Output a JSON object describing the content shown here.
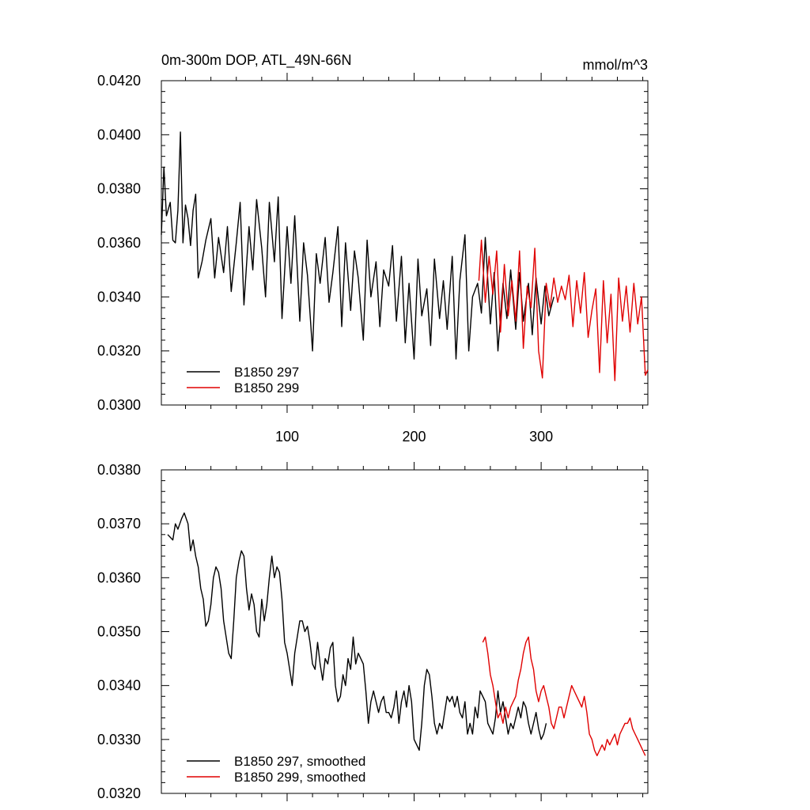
{
  "chart_data": [
    {
      "type": "line",
      "title": "0m-300m DOP, ATL_49N-66N",
      "units": "mmol/m^3",
      "xlim": [
        1,
        384
      ],
      "ylim": [
        0.03,
        0.042
      ],
      "x_ticks": [
        100,
        200,
        300
      ],
      "x_tick_labels": [
        "100",
        "200",
        "300"
      ],
      "y_ticks": [
        0.03,
        0.032,
        0.034,
        0.036,
        0.038,
        0.04,
        0.042
      ],
      "y_tick_labels": [
        "0.0300",
        "0.0320",
        "0.0340",
        "0.0360",
        "0.0380",
        "0.0400",
        "0.0420"
      ],
      "legend_position": "bottom-left",
      "series": [
        {
          "name": "B1850 297",
          "color": "#000000",
          "x": [
            1,
            3,
            5,
            8,
            10,
            12,
            14,
            16,
            18,
            20,
            22,
            24,
            26,
            28,
            30,
            33,
            36,
            40,
            43,
            46,
            50,
            53,
            56,
            60,
            63,
            66,
            70,
            73,
            76,
            80,
            83,
            86,
            90,
            93,
            96,
            100,
            103,
            106,
            110,
            113,
            116,
            120,
            123,
            126,
            130,
            133,
            136,
            140,
            143,
            146,
            150,
            153,
            156,
            160,
            163,
            166,
            170,
            173,
            176,
            180,
            183,
            186,
            190,
            193,
            196,
            200,
            203,
            206,
            210,
            213,
            216,
            220,
            223,
            226,
            230,
            233,
            236,
            240,
            243,
            246,
            250,
            253,
            256,
            260,
            263,
            266,
            270,
            273,
            276,
            280,
            283,
            286,
            290,
            293,
            296,
            300,
            303,
            306,
            310
          ],
          "y": [
            0.0363,
            0.0388,
            0.037,
            0.0375,
            0.0361,
            0.036,
            0.0372,
            0.0401,
            0.036,
            0.0374,
            0.0369,
            0.0359,
            0.0372,
            0.0378,
            0.0347,
            0.0353,
            0.0361,
            0.0369,
            0.0347,
            0.0362,
            0.0349,
            0.0366,
            0.0342,
            0.036,
            0.0375,
            0.0337,
            0.0366,
            0.035,
            0.0376,
            0.0358,
            0.034,
            0.0375,
            0.0353,
            0.0377,
            0.0332,
            0.0366,
            0.0345,
            0.037,
            0.0331,
            0.036,
            0.0348,
            0.032,
            0.0356,
            0.0345,
            0.0362,
            0.0338,
            0.0349,
            0.0366,
            0.0329,
            0.036,
            0.0335,
            0.0357,
            0.0347,
            0.0324,
            0.0361,
            0.034,
            0.0353,
            0.0329,
            0.035,
            0.0344,
            0.0359,
            0.0331,
            0.0355,
            0.0323,
            0.0345,
            0.0317,
            0.0354,
            0.0333,
            0.0343,
            0.0322,
            0.0354,
            0.0332,
            0.0346,
            0.0328,
            0.0355,
            0.0317,
            0.0346,
            0.0363,
            0.032,
            0.034,
            0.0345,
            0.0334,
            0.0362,
            0.033,
            0.0349,
            0.032,
            0.0345,
            0.0332,
            0.035,
            0.0328,
            0.0349,
            0.0331,
            0.0345,
            0.0326,
            0.0347,
            0.033,
            0.0344,
            0.0333,
            0.034
          ]
        },
        {
          "name": "B1850 299",
          "color": "#e00000",
          "x": [
            251,
            253,
            256,
            259,
            262,
            265,
            268,
            271,
            274,
            277,
            280,
            283,
            286,
            289,
            292,
            295,
            298,
            301,
            304,
            307,
            310,
            313,
            316,
            319,
            322,
            325,
            328,
            331,
            334,
            337,
            340,
            343,
            346,
            349,
            352,
            355,
            358,
            361,
            364,
            367,
            370,
            373,
            376,
            379,
            382,
            384
          ],
          "y": [
            0.0346,
            0.0361,
            0.0338,
            0.0355,
            0.0341,
            0.0357,
            0.0327,
            0.0352,
            0.0333,
            0.0346,
            0.0331,
            0.0357,
            0.0321,
            0.0344,
            0.0336,
            0.0358,
            0.032,
            0.031,
            0.0345,
            0.0336,
            0.0347,
            0.0338,
            0.0344,
            0.0339,
            0.0348,
            0.0329,
            0.0346,
            0.0334,
            0.0349,
            0.0325,
            0.0335,
            0.0343,
            0.0312,
            0.0346,
            0.0323,
            0.0341,
            0.0309,
            0.0347,
            0.0331,
            0.0344,
            0.0327,
            0.0345,
            0.033,
            0.034,
            0.0311,
            0.0313
          ]
        }
      ]
    },
    {
      "type": "line",
      "title": "",
      "xlim": [
        1,
        384
      ],
      "ylim": [
        0.032,
        0.038
      ],
      "x_ticks": [
        100,
        200,
        300
      ],
      "x_tick_labels": [],
      "y_ticks": [
        0.032,
        0.033,
        0.034,
        0.035,
        0.036,
        0.037,
        0.038
      ],
      "y_tick_labels": [
        "0.0320",
        "0.0330",
        "0.0340",
        "0.0350",
        "0.0360",
        "0.0370",
        "0.0380"
      ],
      "legend_position": "bottom-left",
      "series": [
        {
          "name": "B1850 297, smoothed",
          "color": "#000000",
          "x": [
            6,
            10,
            12,
            14,
            17,
            19,
            22,
            24,
            26,
            28,
            30,
            32,
            34,
            36,
            38,
            40,
            42,
            44,
            46,
            48,
            50,
            52,
            54,
            56,
            58,
            60,
            62,
            64,
            66,
            68,
            70,
            72,
            74,
            76,
            78,
            80,
            82,
            84,
            86,
            88,
            90,
            92,
            94,
            96,
            98,
            100,
            102,
            104,
            106,
            108,
            110,
            112,
            114,
            116,
            118,
            120,
            122,
            124,
            126,
            128,
            130,
            132,
            134,
            136,
            138,
            140,
            142,
            144,
            146,
            148,
            150,
            152,
            154,
            156,
            158,
            160,
            162,
            164,
            166,
            168,
            170,
            172,
            174,
            176,
            178,
            180,
            182,
            184,
            186,
            188,
            190,
            192,
            194,
            196,
            198,
            200,
            202,
            204,
            206,
            208,
            210,
            212,
            214,
            216,
            218,
            220,
            222,
            224,
            226,
            228,
            230,
            232,
            234,
            236,
            238,
            240,
            242,
            244,
            246,
            248,
            250,
            252,
            254,
            256,
            258,
            260,
            262,
            264,
            266,
            268,
            270,
            272,
            274,
            276,
            278,
            280,
            282,
            284,
            286,
            288,
            290,
            292,
            294,
            296,
            298,
            300,
            302,
            304
          ],
          "y": [
            0.0368,
            0.0367,
            0.037,
            0.0369,
            0.0371,
            0.0372,
            0.037,
            0.0365,
            0.0367,
            0.0364,
            0.0362,
            0.0358,
            0.0356,
            0.0351,
            0.0352,
            0.0355,
            0.036,
            0.0362,
            0.0361,
            0.0358,
            0.0352,
            0.0349,
            0.0346,
            0.0345,
            0.0352,
            0.036,
            0.0363,
            0.0365,
            0.0364,
            0.0358,
            0.0354,
            0.0357,
            0.0355,
            0.035,
            0.0349,
            0.0356,
            0.0352,
            0.0355,
            0.036,
            0.0364,
            0.036,
            0.0362,
            0.0361,
            0.0356,
            0.0348,
            0.0346,
            0.0343,
            0.034,
            0.0346,
            0.0349,
            0.0352,
            0.0352,
            0.035,
            0.0351,
            0.0348,
            0.0344,
            0.0343,
            0.0348,
            0.0344,
            0.0341,
            0.0345,
            0.0344,
            0.0347,
            0.0348,
            0.034,
            0.0337,
            0.0338,
            0.0342,
            0.034,
            0.0345,
            0.0343,
            0.0349,
            0.0344,
            0.0346,
            0.0345,
            0.0344,
            0.0339,
            0.0333,
            0.0337,
            0.0339,
            0.0337,
            0.0335,
            0.0337,
            0.0338,
            0.0335,
            0.0335,
            0.0334,
            0.0336,
            0.0339,
            0.0333,
            0.0337,
            0.0339,
            0.0336,
            0.034,
            0.0337,
            0.033,
            0.0329,
            0.0328,
            0.0333,
            0.034,
            0.0343,
            0.0342,
            0.0338,
            0.0333,
            0.0331,
            0.0333,
            0.0332,
            0.0335,
            0.0338,
            0.0337,
            0.0338,
            0.0336,
            0.0338,
            0.0335,
            0.0334,
            0.0337,
            0.0331,
            0.0333,
            0.0331,
            0.0336,
            0.0334,
            0.0339,
            0.0338,
            0.0337,
            0.0333,
            0.0332,
            0.0331,
            0.0334,
            0.0339,
            0.0335,
            0.0337,
            0.0334,
            0.0331,
            0.0333,
            0.0332,
            0.0334,
            0.0336,
            0.0334,
            0.0337,
            0.0336,
            0.0333,
            0.0331,
            0.0333,
            0.0335,
            0.0332,
            0.033,
            0.0331,
            0.0333
          ]
        },
        {
          "name": "B1850 299, smoothed",
          "color": "#e00000",
          "x": [
            254,
            256,
            258,
            260,
            262,
            264,
            266,
            268,
            270,
            272,
            274,
            276,
            278,
            280,
            282,
            284,
            286,
            288,
            290,
            292,
            294,
            296,
            298,
            300,
            302,
            304,
            306,
            308,
            310,
            312,
            314,
            316,
            318,
            320,
            322,
            324,
            326,
            328,
            330,
            332,
            334,
            336,
            338,
            340,
            342,
            344,
            346,
            348,
            350,
            352,
            354,
            356,
            358,
            360,
            362,
            364,
            366,
            368,
            370,
            372,
            374,
            376,
            378,
            380,
            382
          ],
          "y": [
            0.0348,
            0.0349,
            0.0346,
            0.0342,
            0.034,
            0.0337,
            0.0334,
            0.0335,
            0.0333,
            0.0336,
            0.0334,
            0.0336,
            0.0337,
            0.0338,
            0.0341,
            0.0343,
            0.0346,
            0.0348,
            0.0349,
            0.0345,
            0.0343,
            0.0339,
            0.0337,
            0.0339,
            0.034,
            0.0338,
            0.0336,
            0.0333,
            0.0332,
            0.0334,
            0.0336,
            0.0336,
            0.0334,
            0.0336,
            0.0338,
            0.034,
            0.0339,
            0.0338,
            0.0337,
            0.0336,
            0.0338,
            0.0335,
            0.0331,
            0.033,
            0.0328,
            0.0327,
            0.0328,
            0.0329,
            0.0328,
            0.033,
            0.0329,
            0.033,
            0.0331,
            0.0329,
            0.0331,
            0.0332,
            0.0333,
            0.0333,
            0.0334,
            0.0332,
            0.0331,
            0.033,
            0.0329,
            0.0328,
            0.0327
          ]
        }
      ]
    }
  ]
}
